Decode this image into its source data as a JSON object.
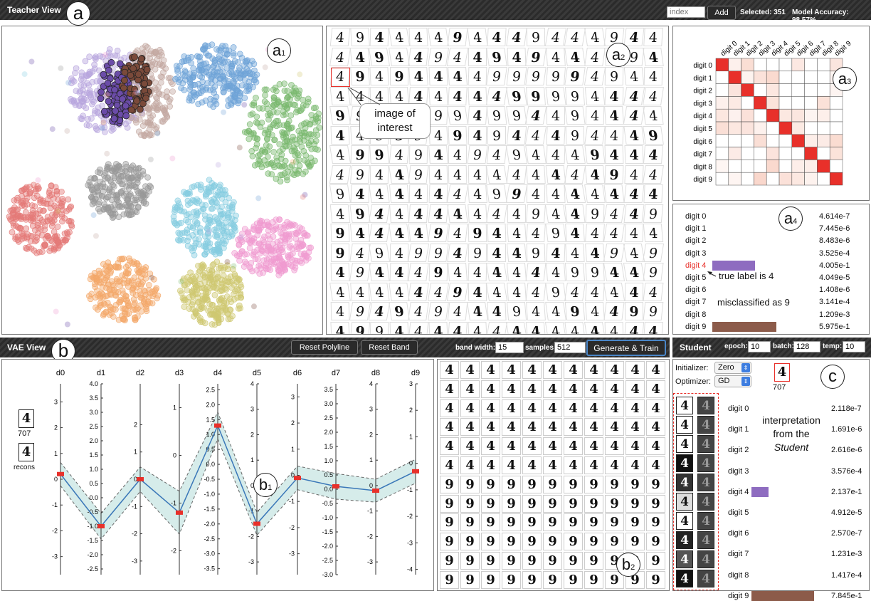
{
  "teacher": {
    "title": "Teacher View",
    "marker": "a",
    "index_placeholder": "index",
    "add_label": "Add",
    "selected": "Selected: 351",
    "accuracy": "Model Accuracy: 98.57%",
    "markers": {
      "a1": "a",
      "a1_sub": "1",
      "a2": "a",
      "a2_sub": "2",
      "a3": "a",
      "a3_sub": "3",
      "a4": "a",
      "a4_sub": "4"
    },
    "image_of_interest": [
      "image of",
      "interest"
    ],
    "grid_glyph": "4",
    "grid_alt": "9"
  },
  "confusion": {
    "col_labels": [
      "digit 0",
      "digit 1",
      "digit 2",
      "digit 3",
      "digit 4",
      "digit 5",
      "digit 6",
      "digit 7",
      "digit 8",
      "digit 9"
    ],
    "row_labels": [
      "digit 0",
      "digit 1",
      "digit 2",
      "digit 3",
      "digit 4",
      "digit 5",
      "digit 6",
      "digit 7",
      "digit 8",
      "digit 9"
    ],
    "diag_color": "#e8302a",
    "light_color": "#f6d2c8"
  },
  "teacher_probs": {
    "labels": [
      "digit 0",
      "digit 1",
      "digit 2",
      "digit 3",
      "digit 4",
      "digit 5",
      "digit 6",
      "digit 7",
      "digit 8",
      "digit 9"
    ],
    "values": [
      "4.614e-7",
      "7.445e-6",
      "8.483e-6",
      "3.525e-4",
      "4.005e-1",
      "4.049e-5",
      "1.408e-6",
      "3.141e-4",
      "1.209e-3",
      "5.975e-1"
    ],
    "probs": [
      4.614e-07,
      7.445e-06,
      8.483e-06,
      0.0003525,
      0.4005,
      4.049e-05,
      1.408e-06,
      0.0003141,
      0.001209,
      0.5975
    ],
    "highlight_index": 4,
    "bar_colors": {
      "4": "#8e6cc0",
      "9": "#8c5b4a"
    },
    "note_true": "true label is 4",
    "note_mis": "misclassified as 9"
  },
  "vae": {
    "title": "VAE View",
    "marker": "b",
    "reset_polyline": "Reset Polyline",
    "reset_band": "Reset Band",
    "band_width_label": "band width:",
    "band_width_value": "15",
    "samples_label": "samples:",
    "samples_value": "512",
    "generate": "Generate & Train",
    "b1": "b",
    "b1_sub": "1",
    "b2": "b",
    "b2_sub": "2",
    "index_text": "707",
    "recons": "recons",
    "dims": [
      "d0",
      "d1",
      "d2",
      "d3",
      "d4",
      "d5",
      "d6",
      "d7",
      "d8",
      "d9"
    ]
  },
  "student": {
    "title": "Student",
    "marker": "c",
    "epoch_label": "epoch:",
    "epoch_value": "10",
    "batch_label": "batch:",
    "batch_value": "128",
    "temp_label": "temp:",
    "temp_value": "10",
    "initializer_label": "Initializer:",
    "initializer_value": "Zero",
    "optimizer_label": "Optimizer:",
    "optimizer_value": "GD",
    "index_text": "707",
    "interp": [
      "interpretation",
      "from the",
      "Student"
    ],
    "labels": [
      "digit 0",
      "digit 1",
      "digit 2",
      "digit 3",
      "digit 4",
      "digit 5",
      "digit 6",
      "digit 7",
      "digit 8",
      "digit 9"
    ],
    "values": [
      "2.118e-7",
      "1.691e-6",
      "2.616e-6",
      "3.576e-4",
      "2.137e-1",
      "4.912e-5",
      "2.570e-7",
      "1.231e-3",
      "1.417e-4",
      "7.845e-1"
    ],
    "probs": [
      2.118e-07,
      1.691e-06,
      2.616e-06,
      0.0003576,
      0.2137,
      4.912e-05,
      2.57e-07,
      0.001231,
      0.0001417,
      0.7845
    ],
    "bar_colors": {
      "4": "#8e6cc0",
      "9": "#8c5b4a"
    }
  },
  "chart_data": {
    "type": "line",
    "categories": [
      "d0",
      "d1",
      "d2",
      "d3",
      "d4",
      "d5",
      "d6",
      "d7",
      "d8",
      "d9"
    ],
    "series": [
      {
        "values": [
          0.2,
          -1.0,
          0.0,
          -1.2,
          1.3,
          -1.5,
          -0.1,
          0.1,
          -0.2,
          -0.3
        ]
      }
    ],
    "axes": [
      {
        "name": "d0",
        "ticks": [
          3,
          2,
          1,
          0,
          -1,
          -2,
          -3
        ],
        "range": [
          -3.7,
          3.7
        ]
      },
      {
        "name": "d1",
        "ticks": [
          4.0,
          3.5,
          3.0,
          2.5,
          2.0,
          1.5,
          1.0,
          0.5,
          0.0,
          -0.5,
          -1.0,
          -1.5,
          -2.0,
          -2.5
        ],
        "range": [
          -2.7,
          4.0
        ]
      },
      {
        "name": "d2",
        "ticks": [
          2,
          1,
          0,
          -1,
          -2,
          -3
        ],
        "range": [
          -3.5,
          3.5
        ]
      },
      {
        "name": "d3",
        "ticks": [
          1,
          0,
          -1,
          -2
        ],
        "range": [
          -2.5,
          1.5
        ]
      },
      {
        "name": "d4",
        "ticks": [
          2.5,
          2.0,
          1.5,
          1.0,
          0.5,
          0.0,
          -0.5,
          -1.0,
          -1.5,
          -2.0,
          -2.5,
          -3.0,
          -3.5
        ],
        "range": [
          -3.7,
          2.7
        ]
      },
      {
        "name": "d5",
        "ticks": [
          4,
          3,
          2,
          1,
          0,
          -1,
          -2,
          -3
        ],
        "range": [
          -3.5,
          4.0
        ]
      },
      {
        "name": "d6",
        "ticks": [
          3,
          2,
          1,
          0,
          -1,
          -2,
          -3
        ],
        "range": [
          -3.8,
          3.5
        ]
      },
      {
        "name": "d7",
        "ticks": [
          3.5,
          3.0,
          2.5,
          2.0,
          1.5,
          1.0,
          0.5,
          0.0,
          -0.5,
          -1.0,
          -1.5,
          -2.0,
          -2.5,
          -3.0
        ],
        "range": [
          -3.0,
          3.7
        ]
      },
      {
        "name": "d8",
        "ticks": [
          4,
          3,
          2,
          1,
          0,
          -1,
          -2,
          -3
        ],
        "range": [
          -3.5,
          4.0
        ]
      },
      {
        "name": "d9",
        "ticks": [
          3,
          2,
          1,
          0,
          -1,
          -2,
          -3,
          -4
        ],
        "range": [
          -4.2,
          3.0
        ]
      }
    ]
  },
  "clusters": [
    {
      "color": "#b9a6de"
    },
    {
      "color": "#6b4ca8"
    },
    {
      "color": "#7a4a3a"
    },
    {
      "color": "#c4a9a1"
    },
    {
      "color": "#6fa3d8"
    },
    {
      "color": "#79b96e"
    },
    {
      "color": "#e47a78"
    },
    {
      "color": "#999999"
    },
    {
      "color": "#86cde0"
    },
    {
      "color": "#f09bd0"
    },
    {
      "color": "#f3a86a"
    },
    {
      "color": "#cfc870"
    }
  ]
}
